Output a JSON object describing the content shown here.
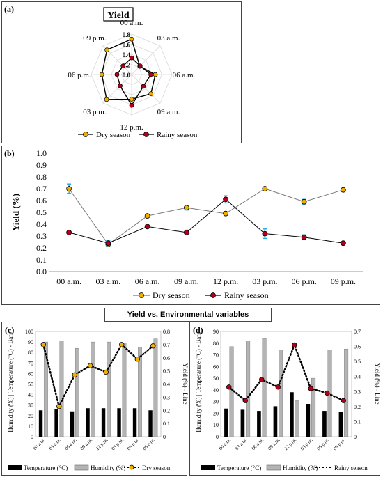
{
  "labels": {
    "a": "(a)",
    "b": "(b)",
    "c": "(c)",
    "d": "(d)"
  },
  "section_title": "Yield vs. Environmental variables",
  "colors": {
    "dry": "#f0b000",
    "rainy": "#b0001a",
    "temp": "#000000",
    "humidity": "#b4b4b4",
    "error": "#1aa7ec",
    "line": "#555555"
  },
  "chart_data": [
    {
      "id": "a",
      "type": "radar",
      "title": "Yield",
      "axes": [
        "00 a.m.",
        "03 a.m.",
        "06 a.m.",
        "09 a.m.",
        "12 p.m.",
        "03 p.m.",
        "06 p.m.",
        "09 p.m."
      ],
      "radial_ticks": [
        "0.0",
        "0.2",
        "0.4",
        "0.6",
        "0.8"
      ],
      "rmax": 0.8,
      "legend_position": "bottom",
      "series": [
        {
          "name": "Dry season",
          "values": [
            0.7,
            0.23,
            0.47,
            0.54,
            0.49,
            0.7,
            0.59,
            0.69
          ]
        },
        {
          "name": "Rainy season",
          "values": [
            0.33,
            0.24,
            0.38,
            0.33,
            0.61,
            0.32,
            0.29,
            0.24
          ]
        }
      ]
    },
    {
      "id": "b",
      "type": "line",
      "categories": [
        "00 a.m.",
        "03 a.m.",
        "06 a.m.",
        "09 a.m.",
        "12 p.m.",
        "03 p.m.",
        "06 p.m.",
        "09 p.m."
      ],
      "ylabel": "Yield (%)",
      "ylim": [
        0,
        1.0
      ],
      "yticks": [
        "0.0",
        "0.1",
        "0.2",
        "0.3",
        "0.4",
        "0.5",
        "0.6",
        "0.7",
        "0.8",
        "0.9",
        "1.0"
      ],
      "legend_position": "bottom",
      "series": [
        {
          "name": "Dry season",
          "values": [
            0.7,
            0.23,
            0.47,
            0.54,
            0.49,
            0.7,
            0.59,
            0.69
          ],
          "error": [
            0.04,
            0.02,
            0,
            0.02,
            0,
            0,
            0.02,
            0
          ]
        },
        {
          "name": "Rainy season",
          "values": [
            0.33,
            0.24,
            0.38,
            0.33,
            0.61,
            0.32,
            0.29,
            0.24
          ],
          "error": [
            0,
            0.02,
            0,
            0.02,
            0.03,
            0.04,
            0.02,
            0
          ]
        }
      ]
    },
    {
      "id": "c",
      "type": "bar+line",
      "categories": [
        "00 a.m.",
        "03 a.m.",
        "06 a.m.",
        "09 a.m.",
        "12 p.m.",
        "03 p.m.",
        "06 p.m.",
        "09 p.m."
      ],
      "ylabel": "Humidity (%) | Temperature (°C) - Bars",
      "y2label": "Yield (%) - Line",
      "ylim": [
        0,
        100
      ],
      "y2lim": [
        0,
        0.8
      ],
      "yticks": [
        "0",
        "10",
        "20",
        "30",
        "40",
        "50",
        "60",
        "70",
        "80",
        "90",
        "100"
      ],
      "y2ticks": [
        "0",
        "0.1",
        "0.2",
        "0.3",
        "0.4",
        "0.5",
        "0.6",
        "0.7",
        "0.8"
      ],
      "bars": [
        {
          "name": "Temperature (°C)",
          "values": [
            25,
            26,
            24,
            27,
            27,
            27,
            27,
            25
          ]
        },
        {
          "name": "Humidity (%)",
          "values": [
            90,
            91,
            84,
            90,
            90,
            89,
            85,
            93
          ]
        }
      ],
      "line": {
        "name": "Dry season",
        "values": [
          0.7,
          0.23,
          0.47,
          0.54,
          0.49,
          0.7,
          0.59,
          0.69
        ]
      }
    },
    {
      "id": "d",
      "type": "bar+line",
      "categories": [
        "00 a.m.",
        "03 a.m.",
        "06 a.m.",
        "09 a.m.",
        "12 p.m.",
        "03 p.m.",
        "06 p.m.",
        "09 p.m."
      ],
      "ylabel": "Humidity (%) | Temperature (°C) - Bars",
      "y2label": "Yield (%) - Line",
      "ylim": [
        0,
        90
      ],
      "y2lim": [
        0,
        0.7
      ],
      "yticks": [
        "0",
        "10",
        "20",
        "30",
        "40",
        "50",
        "60",
        "70",
        "80",
        "90"
      ],
      "y2ticks": [
        "0",
        "0.1",
        "0.2",
        "0.3",
        "0.4",
        "0.5",
        "0.6",
        "0.7"
      ],
      "bars": [
        {
          "name": "Temperature (°C)",
          "values": [
            24,
            23,
            22,
            26,
            38,
            28,
            22,
            21
          ]
        },
        {
          "name": "Humidity (%)",
          "values": [
            77,
            82,
            84,
            74,
            31,
            50,
            74,
            75
          ]
        }
      ],
      "line": {
        "name": "Rainy season",
        "values": [
          0.33,
          0.24,
          0.38,
          0.33,
          0.61,
          0.32,
          0.29,
          0.24
        ]
      }
    }
  ]
}
